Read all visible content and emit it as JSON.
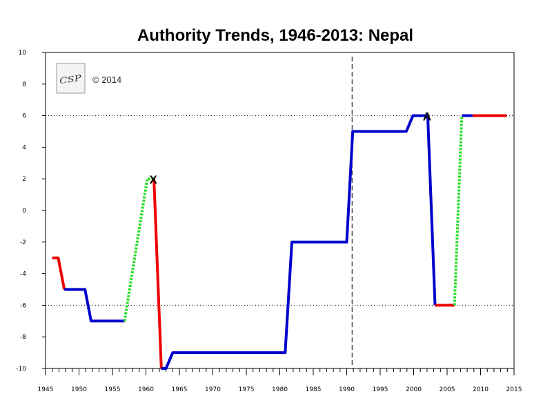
{
  "chart_data": {
    "type": "line",
    "title": "Authority Trends, 1946-2013: Nepal",
    "xlabel": "",
    "ylabel": "",
    "xlim": [
      1945,
      2015
    ],
    "ylim": [
      -10,
      10
    ],
    "x_ticks": [
      1945,
      1950,
      1955,
      1960,
      1965,
      1970,
      1975,
      1980,
      1985,
      1990,
      1995,
      2000,
      2005,
      2010,
      2015
    ],
    "y_ticks": [
      10,
      8,
      6,
      4,
      2,
      0,
      -2,
      -4,
      -6,
      -8,
      -10
    ],
    "reference_lines": [
      6,
      -6
    ],
    "vertical_reference_line": 1990.8,
    "copyright": "© 2014",
    "logo_letters": "CSP",
    "colors": {
      "blue": "#0000cc",
      "red": "#ee0000",
      "green": "#22dd22",
      "axis": "#000000"
    },
    "segments": [
      {
        "color": "red",
        "style": "solid",
        "points": [
          [
            1946.0,
            -3
          ],
          [
            1946.9,
            -3
          ],
          [
            1947.8,
            -5
          ]
        ]
      },
      {
        "color": "blue",
        "style": "solid",
        "points": [
          [
            1947.8,
            -5
          ],
          [
            1950.9,
            -5
          ],
          [
            1951.8,
            -7
          ],
          [
            1956.8,
            -7
          ]
        ]
      },
      {
        "color": "green",
        "style": "dotted",
        "points": [
          [
            1956.8,
            -7
          ],
          [
            1960.2,
            2
          ],
          [
            1961.2,
            2
          ]
        ]
      },
      {
        "color": "red",
        "style": "solid",
        "points": [
          [
            1961.2,
            2
          ],
          [
            1962.3,
            -10
          ]
        ]
      },
      {
        "color": "blue",
        "style": "solid",
        "points": [
          [
            1962.3,
            -10
          ],
          [
            1963.0,
            -10
          ],
          [
            1964.0,
            -9
          ],
          [
            1980.8,
            -9
          ],
          [
            1981.8,
            -2
          ],
          [
            1990.0,
            -2
          ],
          [
            1990.9,
            5
          ],
          [
            1998.9,
            5
          ],
          [
            1999.9,
            6
          ],
          [
            2001.0,
            6
          ],
          [
            2002.1,
            6
          ],
          [
            2003.2,
            -6
          ]
        ]
      },
      {
        "color": "red",
        "style": "solid",
        "points": [
          [
            2003.2,
            -6
          ],
          [
            2006.1,
            -6
          ]
        ]
      },
      {
        "color": "green",
        "style": "dotted",
        "points": [
          [
            2006.1,
            -6
          ],
          [
            2007.2,
            6
          ]
        ]
      },
      {
        "color": "blue",
        "style": "solid",
        "points": [
          [
            2007.2,
            6
          ],
          [
            2008.8,
            6
          ]
        ]
      },
      {
        "color": "red",
        "style": "solid",
        "points": [
          [
            2008.8,
            6
          ],
          [
            2013.9,
            6
          ]
        ]
      }
    ],
    "annotations": [
      {
        "label": "X",
        "x": 1961.2,
        "y": 2
      },
      {
        "label": "A",
        "x": 2002.1,
        "y": 6
      }
    ]
  }
}
